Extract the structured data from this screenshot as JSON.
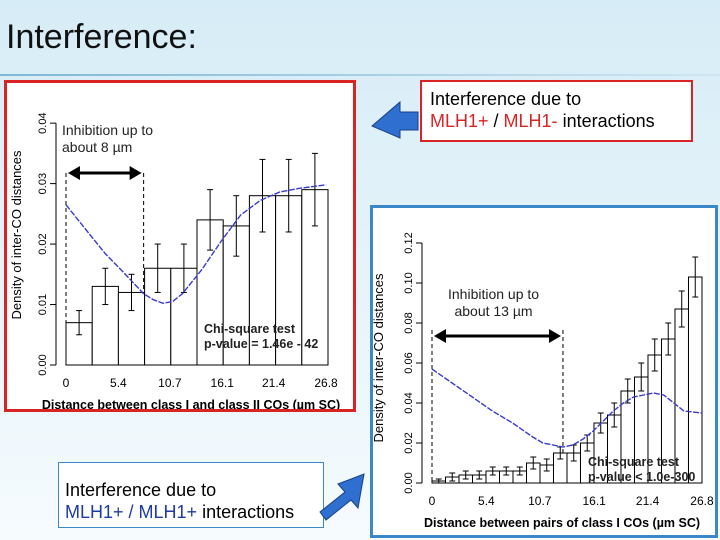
{
  "title": "Interference:",
  "callouts": {
    "top": {
      "prefix": "Interference due to",
      "part1": "MLH1+",
      "sep": " / ",
      "part2": "MLH1-",
      "suffix": " interactions"
    },
    "bottom": {
      "prefix": "Interference due to",
      "part1": "MLH1+",
      "sep": " / ",
      "part2": "MLH1+",
      "suffix": " interactions"
    }
  },
  "annotations": {
    "left_inhibition": "Inhibition up to about 8 µm",
    "left_inhibition_l1": "Inhibition up to",
    "left_inhibition_l2": "about 8 µm",
    "right_inhibition_l1": "Inhibition up to",
    "right_inhibition_l2": "about 13 µm"
  },
  "colors": {
    "callout_red": "#d82424",
    "panel_blue": "#3b88c8",
    "curve": "#3a3ad0"
  },
  "chart_data": [
    {
      "type": "bar",
      "xlabel": "Distance between class I and class II COs (µm SC)",
      "ylabel": "Density of inter-CO distances",
      "xticks": [
        "0",
        "5.4",
        "10.7",
        "16.1",
        "21.4",
        "26.8"
      ],
      "yticks": [
        "0.00",
        "0.01",
        "0.02",
        "0.03",
        "0.04"
      ],
      "xlim": [
        0,
        27
      ],
      "ylim": [
        0,
        0.043
      ],
      "bin_width": 2.7,
      "bin_starts": [
        0,
        2.7,
        5.4,
        8.1,
        10.8,
        13.5,
        16.2,
        18.9,
        21.6,
        24.3
      ],
      "values": [
        0.007,
        0.013,
        0.012,
        0.016,
        0.016,
        0.024,
        0.023,
        0.028,
        0.028,
        0.029
      ],
      "errors": [
        0.002,
        0.003,
        0.003,
        0.004,
        0.004,
        0.005,
        0.005,
        0.006,
        0.006,
        0.006
      ],
      "expected_curve": {
        "x": [
          0,
          2,
          4,
          6,
          8,
          9,
          10,
          11,
          12,
          14,
          16,
          18,
          20,
          22,
          24,
          26.8
        ],
        "y": [
          0.0265,
          0.0225,
          0.0185,
          0.0152,
          0.0118,
          0.0108,
          0.0102,
          0.0105,
          0.0118,
          0.0158,
          0.0205,
          0.0248,
          0.0272,
          0.0286,
          0.0292,
          0.0298
        ]
      },
      "dashed_lines_x": [
        0,
        8
      ],
      "test_label": "Chi-square test",
      "p_value": "p-value = 1.46e - 42"
    },
    {
      "type": "bar",
      "xlabel": "Distance between pairs of class I COs (µm SC)",
      "ylabel": "Density of inter-CO distances",
      "xticks": [
        "0",
        "5.4",
        "10.7",
        "16.1",
        "21.4",
        "26.8"
      ],
      "yticks": [
        "0.00",
        "0.02",
        "0.04",
        "0.06",
        "0.08",
        "0.10",
        "0.12"
      ],
      "xlim": [
        0,
        27
      ],
      "ylim": [
        0,
        0.125
      ],
      "bin_width": 1.34,
      "bin_starts": [
        0,
        1.34,
        2.68,
        4.02,
        5.36,
        6.7,
        8.04,
        9.38,
        10.72,
        12.06,
        13.4,
        14.74,
        16.08,
        17.42,
        18.76,
        20.1,
        21.44,
        22.78,
        24.12,
        25.46
      ],
      "values": [
        0.001,
        0.003,
        0.004,
        0.004,
        0.006,
        0.006,
        0.006,
        0.01,
        0.009,
        0.015,
        0.015,
        0.02,
        0.03,
        0.034,
        0.046,
        0.053,
        0.064,
        0.072,
        0.087,
        0.103
      ],
      "errors": [
        0.001,
        0.002,
        0.002,
        0.002,
        0.002,
        0.002,
        0.002,
        0.003,
        0.003,
        0.003,
        0.004,
        0.004,
        0.005,
        0.006,
        0.006,
        0.007,
        0.008,
        0.008,
        0.009,
        0.01
      ],
      "expected_curve": {
        "x": [
          0,
          2,
          4,
          6,
          8,
          10,
          11,
          12,
          13,
          14,
          15,
          16,
          17,
          18,
          19,
          20,
          21,
          22,
          23,
          24,
          25,
          26.8
        ],
        "y": [
          0.057,
          0.05,
          0.043,
          0.036,
          0.03,
          0.023,
          0.02,
          0.019,
          0.018,
          0.019,
          0.022,
          0.026,
          0.031,
          0.036,
          0.04,
          0.043,
          0.044,
          0.045,
          0.044,
          0.04,
          0.036,
          0.035
        ]
      },
      "dashed_lines_x": [
        0,
        13
      ],
      "test_label": "Chi-square test",
      "p_value": "p-value < 1.0e-300"
    }
  ]
}
